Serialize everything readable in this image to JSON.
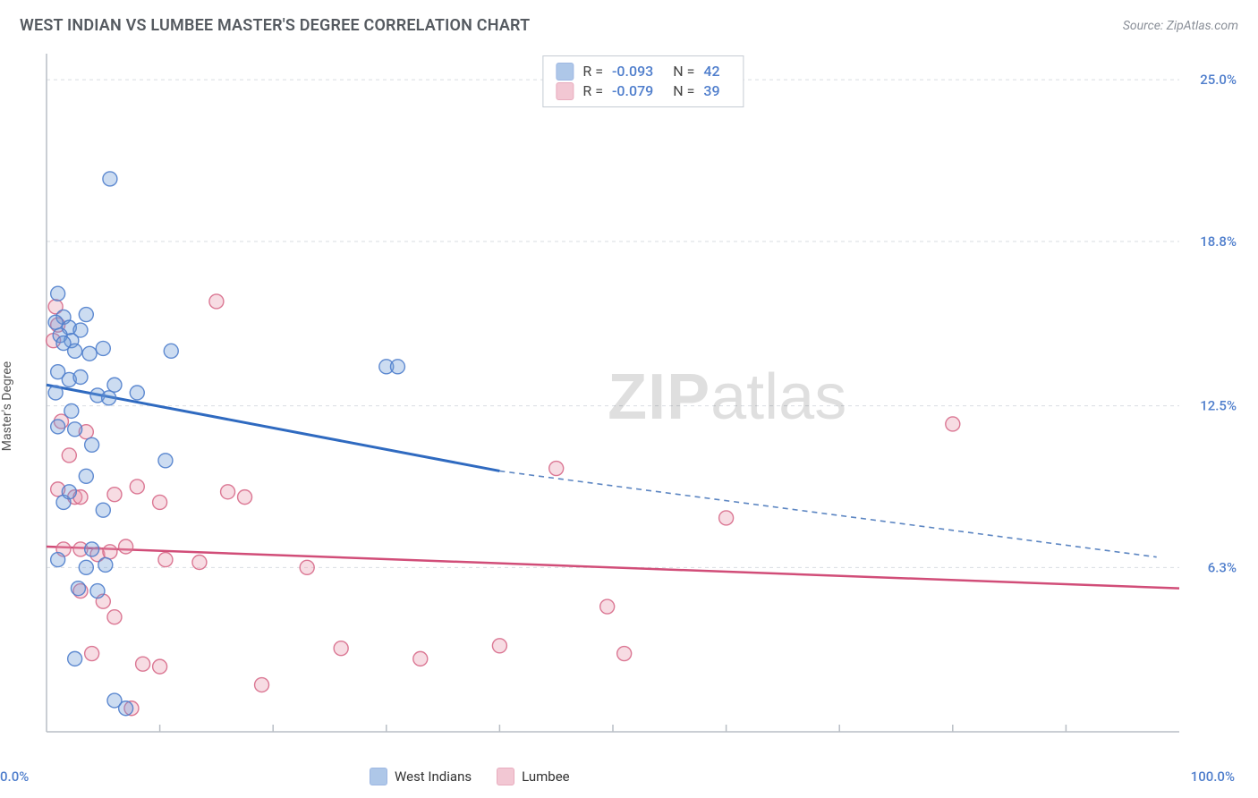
{
  "title": "WEST INDIAN VS LUMBEE MASTER'S DEGREE CORRELATION CHART",
  "source": "Source: ZipAtlas.com",
  "ylabel": "Master's Degree",
  "watermark": {
    "bold": "ZIP",
    "rest": "atlas"
  },
  "chart": {
    "type": "scatter",
    "xlim": [
      0,
      100
    ],
    "ylim": [
      0,
      26
    ],
    "background_color": "#ffffff",
    "grid_color": "#d9dde2",
    "axis_color": "#b9bec5",
    "x_major_ticks": [
      10,
      20,
      30,
      40,
      50,
      60,
      70,
      80,
      90
    ],
    "y_gridlines": [
      {
        "y": 6.3,
        "label": "6.3%"
      },
      {
        "y": 12.5,
        "label": "12.5%"
      },
      {
        "y": 18.8,
        "label": "18.8%"
      },
      {
        "y": 25.0,
        "label": "25.0%"
      }
    ],
    "x_axis_labels": {
      "min": "0.0%",
      "max": "100.0%"
    },
    "marker_radius": 8,
    "marker_fill_opacity": 0.35,
    "marker_stroke_opacity": 0.9,
    "marker_stroke_width": 1.4
  },
  "series": {
    "west_indians": {
      "label": "West Indians",
      "color": "#6d9ad6",
      "stroke": "#4f7ecc",
      "line_color": "#2f6ac0",
      "line_width": 3,
      "dash_color": "#5b85c2",
      "regression": {
        "x0": 0,
        "y0": 13.3,
        "x1_solid": 40,
        "y1_solid": 10.0,
        "x2": 98,
        "y2": 6.7
      },
      "R": "-0.093",
      "N": "42",
      "points": [
        [
          1.0,
          16.8
        ],
        [
          1.5,
          15.9
        ],
        [
          2.0,
          15.5
        ],
        [
          0.8,
          15.7
        ],
        [
          1.2,
          15.2
        ],
        [
          2.2,
          15.0
        ],
        [
          3.0,
          15.4
        ],
        [
          3.5,
          16.0
        ],
        [
          1.5,
          14.9
        ],
        [
          2.5,
          14.6
        ],
        [
          3.8,
          14.5
        ],
        [
          1.0,
          13.8
        ],
        [
          2.0,
          13.5
        ],
        [
          3.0,
          13.6
        ],
        [
          5.0,
          14.7
        ],
        [
          6.0,
          13.3
        ],
        [
          11.0,
          14.6
        ],
        [
          4.5,
          12.9
        ],
        [
          5.5,
          12.8
        ],
        [
          2.2,
          12.3
        ],
        [
          1.0,
          11.7
        ],
        [
          2.5,
          11.6
        ],
        [
          4.0,
          11.0
        ],
        [
          5.6,
          21.2
        ],
        [
          1.0,
          6.6
        ],
        [
          3.5,
          6.3
        ],
        [
          4.0,
          7.0
        ],
        [
          5.2,
          6.4
        ],
        [
          2.8,
          5.5
        ],
        [
          4.5,
          5.4
        ],
        [
          10.5,
          10.4
        ],
        [
          30.0,
          14.0
        ],
        [
          31.0,
          14.0
        ],
        [
          6.0,
          1.2
        ],
        [
          7.0,
          0.9
        ],
        [
          2.5,
          2.8
        ],
        [
          1.5,
          8.8
        ],
        [
          2.0,
          9.2
        ],
        [
          3.5,
          9.8
        ],
        [
          8.0,
          13.0
        ],
        [
          5.0,
          8.5
        ],
        [
          0.8,
          13.0
        ]
      ]
    },
    "lumbee": {
      "label": "Lumbee",
      "color": "#e89ab0",
      "stroke": "#d76a8a",
      "line_color": "#d14d78",
      "line_width": 2.5,
      "regression": {
        "x0": 0,
        "y0": 7.1,
        "x1_solid": 100,
        "y1_solid": 5.5,
        "x2": 100,
        "y2": 5.5
      },
      "R": "-0.079",
      "N": "39",
      "points": [
        [
          0.8,
          16.3
        ],
        [
          1.0,
          15.6
        ],
        [
          0.6,
          15.0
        ],
        [
          1.3,
          11.9
        ],
        [
          3.5,
          11.5
        ],
        [
          2.0,
          10.6
        ],
        [
          15.0,
          16.5
        ],
        [
          1.0,
          9.3
        ],
        [
          2.5,
          9.0
        ],
        [
          3.0,
          9.0
        ],
        [
          6.0,
          9.1
        ],
        [
          8.0,
          9.4
        ],
        [
          10.0,
          8.8
        ],
        [
          16.0,
          9.2
        ],
        [
          17.5,
          9.0
        ],
        [
          1.5,
          7.0
        ],
        [
          3.0,
          7.0
        ],
        [
          4.5,
          6.8
        ],
        [
          5.6,
          6.9
        ],
        [
          7.0,
          7.1
        ],
        [
          10.5,
          6.6
        ],
        [
          13.5,
          6.5
        ],
        [
          23.0,
          6.3
        ],
        [
          3.0,
          5.4
        ],
        [
          5.0,
          5.0
        ],
        [
          6.0,
          4.4
        ],
        [
          4.0,
          3.0
        ],
        [
          8.5,
          2.6
        ],
        [
          10.0,
          2.5
        ],
        [
          19.0,
          1.8
        ],
        [
          7.5,
          0.9
        ],
        [
          26.0,
          3.2
        ],
        [
          33.0,
          2.8
        ],
        [
          40.0,
          3.3
        ],
        [
          45.0,
          10.1
        ],
        [
          49.5,
          4.8
        ],
        [
          51.0,
          3.0
        ],
        [
          60.0,
          8.2
        ],
        [
          80.0,
          11.8
        ]
      ]
    }
  },
  "stats_box": {
    "rows": [
      {
        "swatch": "west_indians",
        "R_label": "R =",
        "N_label": "N ="
      },
      {
        "swatch": "lumbee",
        "R_label": "R =",
        "N_label": "N ="
      }
    ]
  }
}
